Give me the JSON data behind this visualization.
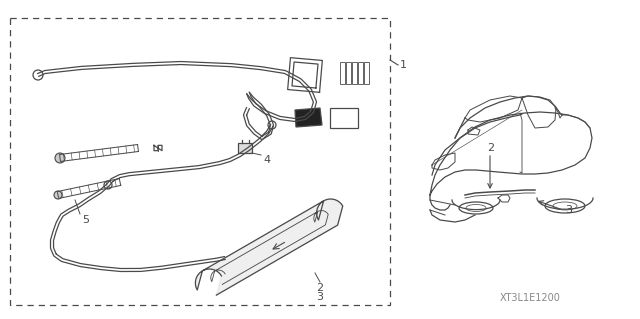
{
  "bg_color": "#ffffff",
  "line_color": "#4a4a4a",
  "label_1": "1",
  "label_2": "2",
  "label_3": "3",
  "label_4": "4",
  "label_5": "5",
  "footnote": "XT3L1E1200"
}
